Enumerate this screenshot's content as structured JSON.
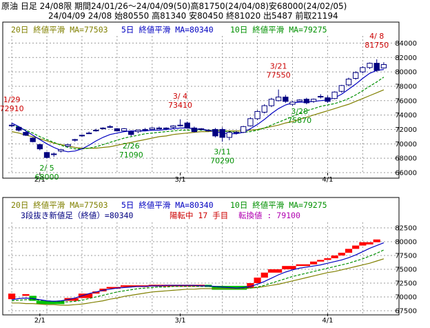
{
  "header": {
    "line1": "原油 日足 24/08限 期間24/01/26～24/04/09(50)高81750(24/04/08)安68000(24/02/05)",
    "line2": "24/04/09 24/08 始80550 高81340 安80450 終81020 出5487 前取21194"
  },
  "colors": {
    "ma20": "#808000",
    "ma5": "#0000c0",
    "ma10": "#009000",
    "up": "#ffffff",
    "down": "#000080",
    "brick_up": "#ff0000",
    "brick_down": "#00c000",
    "annot_high": "#cc0000",
    "annot_low": "#009000",
    "grid": "#999999"
  },
  "chart_data": [
    {
      "type": "candlestick",
      "legend": [
        {
          "label": "20日 終値平滑 MA=77503",
          "color_key": "ma20"
        },
        {
          "label": "5日 終値平滑 MA=80340",
          "color_key": "ma5"
        },
        {
          "label": "10日 終値平滑 MA=79275",
          "color_key": "ma10"
        }
      ],
      "x_ticks": [
        {
          "label": "2/1",
          "i": 4
        },
        {
          "label": "3/1",
          "i": 24
        },
        {
          "label": "4/1",
          "i": 45
        }
      ],
      "ylim": [
        66000,
        85000
      ],
      "y_ticks": [
        66000,
        68000,
        70000,
        72000,
        74000,
        76000,
        78000,
        80000,
        82000,
        84000
      ],
      "candles": [
        {
          "o": 72500,
          "h": 72910,
          "l": 72300,
          "c": 72600
        },
        {
          "o": 72300,
          "h": 72400,
          "l": 71700,
          "c": 71900
        },
        {
          "o": 71600,
          "h": 71700,
          "l": 71100,
          "c": 71200
        },
        {
          "o": 70800,
          "h": 70900,
          "l": 70200,
          "c": 70300
        },
        {
          "o": 69900,
          "h": 70000,
          "l": 69100,
          "c": 69300
        },
        {
          "o": 68800,
          "h": 68900,
          "l": 68000,
          "c": 68100
        },
        {
          "o": 68500,
          "h": 68800,
          "l": 68200,
          "c": 68600
        },
        {
          "o": 69000,
          "h": 69300,
          "l": 68800,
          "c": 69200
        },
        {
          "o": 69700,
          "h": 70000,
          "l": 69500,
          "c": 69900
        },
        {
          "o": 70500,
          "h": 70700,
          "l": 70300,
          "c": 70600
        },
        {
          "o": 71100,
          "h": 71300,
          "l": 71000,
          "c": 71200
        },
        {
          "o": 71500,
          "h": 71700,
          "l": 71400,
          "c": 71500
        },
        {
          "o": 71900,
          "h": 72100,
          "l": 71700,
          "c": 71800
        },
        {
          "o": 72200,
          "h": 72300,
          "l": 72000,
          "c": 72100
        },
        {
          "o": 72400,
          "h": 72600,
          "l": 72200,
          "c": 72300
        },
        {
          "o": 72100,
          "h": 72200,
          "l": 71700,
          "c": 71800
        },
        {
          "o": 71800,
          "h": 72200,
          "l": 71700,
          "c": 72100
        },
        {
          "o": 71700,
          "h": 71800,
          "l": 71090,
          "c": 71300
        },
        {
          "o": 71700,
          "h": 72000,
          "l": 71500,
          "c": 71900
        },
        {
          "o": 71900,
          "h": 72200,
          "l": 71800,
          "c": 72000
        },
        {
          "o": 72000,
          "h": 72300,
          "l": 71900,
          "c": 72200
        },
        {
          "o": 72100,
          "h": 72400,
          "l": 72000,
          "c": 72200
        },
        {
          "o": 72100,
          "h": 72300,
          "l": 71900,
          "c": 72200
        },
        {
          "o": 72300,
          "h": 72600,
          "l": 72100,
          "c": 72500
        },
        {
          "o": 72500,
          "h": 73410,
          "l": 72400,
          "c": 72600
        },
        {
          "o": 72900,
          "h": 73100,
          "l": 72100,
          "c": 72200
        },
        {
          "o": 72200,
          "h": 72400,
          "l": 71600,
          "c": 71700
        },
        {
          "o": 72000,
          "h": 72200,
          "l": 71900,
          "c": 72100
        },
        {
          "o": 71800,
          "h": 72000,
          "l": 71700,
          "c": 71900
        },
        {
          "o": 72000,
          "h": 72200,
          "l": 70900,
          "c": 71100
        },
        {
          "o": 72000,
          "h": 72300,
          "l": 70290,
          "c": 70900
        },
        {
          "o": 70900,
          "h": 71800,
          "l": 70500,
          "c": 71600
        },
        {
          "o": 71500,
          "h": 71800,
          "l": 71300,
          "c": 71600
        },
        {
          "o": 71600,
          "h": 72500,
          "l": 71500,
          "c": 72400
        },
        {
          "o": 72500,
          "h": 73700,
          "l": 72400,
          "c": 73500
        },
        {
          "o": 73500,
          "h": 74700,
          "l": 73300,
          "c": 74500
        },
        {
          "o": 74400,
          "h": 75500,
          "l": 74200,
          "c": 75300
        },
        {
          "o": 75300,
          "h": 76400,
          "l": 75100,
          "c": 76200
        },
        {
          "o": 76000,
          "h": 77550,
          "l": 75900,
          "c": 76500
        },
        {
          "o": 76500,
          "h": 76800,
          "l": 75700,
          "c": 75900
        },
        {
          "o": 75500,
          "h": 76000,
          "l": 75300,
          "c": 75800
        },
        {
          "o": 75900,
          "h": 76200,
          "l": 75870,
          "c": 76100
        },
        {
          "o": 76200,
          "h": 76400,
          "l": 75500,
          "c": 75700
        },
        {
          "o": 75900,
          "h": 76300,
          "l": 75700,
          "c": 76200
        },
        {
          "o": 76500,
          "h": 76900,
          "l": 76300,
          "c": 76600
        },
        {
          "o": 76400,
          "h": 76700,
          "l": 75700,
          "c": 75900
        },
        {
          "o": 76300,
          "h": 77300,
          "l": 76200,
          "c": 77200
        },
        {
          "o": 77300,
          "h": 78200,
          "l": 77100,
          "c": 78100
        },
        {
          "o": 78200,
          "h": 79200,
          "l": 78000,
          "c": 79000
        },
        {
          "o": 79100,
          "h": 80100,
          "l": 78900,
          "c": 79900
        },
        {
          "o": 80000,
          "h": 80800,
          "l": 79800,
          "c": 80600
        },
        {
          "o": 80600,
          "h": 81300,
          "l": 80400,
          "c": 81200
        },
        {
          "o": 81200,
          "h": 81750,
          "l": 80000,
          "c": 80200
        },
        {
          "o": 80550,
          "h": 81340,
          "l": 80450,
          "c": 81020
        }
      ],
      "ma5": [
        72900,
        72400,
        71800,
        71200,
        70600,
        70000,
        69500,
        69100,
        68900,
        69000,
        69300,
        69800,
        70400,
        70900,
        71300,
        71500,
        71700,
        71800,
        71800,
        71800,
        71900,
        71900,
        72000,
        72100,
        72200,
        72200,
        72100,
        72000,
        71900,
        71700,
        71500,
        71400,
        71400,
        71600,
        72100,
        72700,
        73400,
        74200,
        74900,
        75400,
        75700,
        75800,
        75800,
        75900,
        76000,
        76100,
        76400,
        76900,
        77600,
        78300,
        79100,
        79800,
        80200,
        80340
      ],
      "ma10": [
        72600,
        72300,
        71900,
        71500,
        71000,
        70600,
        70200,
        69800,
        69500,
        69300,
        69300,
        69400,
        69600,
        69900,
        70200,
        70500,
        70800,
        71000,
        71200,
        71400,
        71500,
        71600,
        71700,
        71800,
        71900,
        71900,
        71900,
        71900,
        71900,
        71900,
        71800,
        71700,
        71600,
        71600,
        71700,
        71900,
        72200,
        72600,
        73000,
        73400,
        73800,
        74200,
        74600,
        74900,
        75200,
        75400,
        75600,
        75900,
        76300,
        76800,
        77400,
        78000,
        78600,
        79275
      ],
      "ma20": [
        71700,
        71500,
        71200,
        71000,
        70700,
        70400,
        70100,
        69900,
        69700,
        69500,
        69400,
        69400,
        69400,
        69500,
        69600,
        69800,
        70000,
        70200,
        70400,
        70600,
        70800,
        71000,
        71100,
        71300,
        71400,
        71500,
        71600,
        71700,
        71700,
        71800,
        71800,
        71800,
        71800,
        71800,
        71900,
        72000,
        72200,
        72400,
        72600,
        72900,
        73100,
        73400,
        73700,
        74000,
        74300,
        74600,
        74900,
        75200,
        75500,
        75900,
        76300,
        76700,
        77100,
        77503
      ],
      "annotations": [
        {
          "i": 0,
          "text_date": "1/29",
          "text_val": "72910",
          "kind": "high"
        },
        {
          "i": 5,
          "text_date": "2/ 5",
          "text_val": "68000",
          "kind": "low"
        },
        {
          "i": 17,
          "text_date": "2/26",
          "text_val": "71090",
          "kind": "low"
        },
        {
          "i": 24,
          "text_date": "3/ 4",
          "text_val": "73410",
          "kind": "high"
        },
        {
          "i": 30,
          "text_date": "3/11",
          "text_val": "70290",
          "kind": "low"
        },
        {
          "i": 38,
          "text_date": "3/21",
          "text_val": "77550",
          "kind": "high"
        },
        {
          "i": 41,
          "text_date": "3/28",
          "text_val": "75870",
          "kind": "low"
        },
        {
          "i": 52,
          "text_date": "4/ 8",
          "text_val": "81750",
          "kind": "high"
        }
      ]
    },
    {
      "type": "three_line_break",
      "legend": [
        {
          "label": "20日 終値平滑 MA=77503",
          "color_key": "ma20"
        },
        {
          "label": "5日 終値平滑 MA=80340",
          "color_key": "ma5"
        },
        {
          "label": "10日 終値平滑 MA=79275",
          "color_key": "ma10"
        }
      ],
      "info": {
        "label": "3段抜き新値足（終値）=80340",
        "status": "陽転中 17 手目",
        "reversal": "転換値 : 79100"
      },
      "x_ticks": [
        {
          "label": "2/1",
          "i": 4
        },
        {
          "label": "3/1",
          "i": 24
        },
        {
          "label": "4/1",
          "i": 45
        }
      ],
      "ylim": [
        67000,
        83500
      ],
      "y_ticks": [
        67500,
        70000,
        72500,
        75000,
        77500,
        80000,
        82500
      ],
      "bricks": [
        {
          "from": 0,
          "to": 1,
          "lo": 69600,
          "hi": 70600,
          "dir": "up"
        },
        {
          "from": 2,
          "to": 3,
          "lo": 70200,
          "hi": 70500,
          "dir": "up"
        },
        {
          "from": 3,
          "to": 4,
          "lo": 69300,
          "hi": 70200,
          "dir": "down"
        },
        {
          "from": 4,
          "to": 8,
          "lo": 68700,
          "hi": 69300,
          "dir": "down"
        },
        {
          "from": 8,
          "to": 10,
          "lo": 69300,
          "hi": 69800,
          "dir": "up"
        },
        {
          "from": 10,
          "to": 12,
          "lo": 69800,
          "hi": 70600,
          "dir": "up"
        },
        {
          "from": 12,
          "to": 13,
          "lo": 70600,
          "hi": 71000,
          "dir": "up"
        },
        {
          "from": 13,
          "to": 14,
          "lo": 71000,
          "hi": 71500,
          "dir": "up"
        },
        {
          "from": 14,
          "to": 16,
          "lo": 71500,
          "hi": 71800,
          "dir": "up"
        },
        {
          "from": 16,
          "to": 20,
          "lo": 71800,
          "hi": 72100,
          "dir": "up"
        },
        {
          "from": 20,
          "to": 28,
          "lo": 71900,
          "hi": 72200,
          "dir": "up"
        },
        {
          "from": 28,
          "to": 29,
          "lo": 71800,
          "hi": 72200,
          "dir": "down"
        },
        {
          "from": 29,
          "to": 34,
          "lo": 71300,
          "hi": 72000,
          "dir": "down"
        },
        {
          "from": 34,
          "to": 35,
          "lo": 71600,
          "hi": 72500,
          "dir": "up"
        },
        {
          "from": 35,
          "to": 36,
          "lo": 72500,
          "hi": 73500,
          "dir": "up"
        },
        {
          "from": 36,
          "to": 37,
          "lo": 73500,
          "hi": 74400,
          "dir": "up"
        },
        {
          "from": 37,
          "to": 39,
          "lo": 74400,
          "hi": 75000,
          "dir": "up"
        },
        {
          "from": 39,
          "to": 41,
          "lo": 75000,
          "hi": 75600,
          "dir": "up"
        },
        {
          "from": 41,
          "to": 43,
          "lo": 75600,
          "hi": 75900,
          "dir": "up"
        },
        {
          "from": 43,
          "to": 44,
          "lo": 75900,
          "hi": 76400,
          "dir": "up"
        },
        {
          "from": 44,
          "to": 45,
          "lo": 76400,
          "hi": 76700,
          "dir": "up"
        },
        {
          "from": 45,
          "to": 46,
          "lo": 76700,
          "hi": 77000,
          "dir": "up"
        },
        {
          "from": 46,
          "to": 47,
          "lo": 77000,
          "hi": 77500,
          "dir": "up"
        },
        {
          "from": 47,
          "to": 48,
          "lo": 77500,
          "hi": 78000,
          "dir": "up"
        },
        {
          "from": 48,
          "to": 49,
          "lo": 78000,
          "hi": 78700,
          "dir": "up"
        },
        {
          "from": 49,
          "to": 50,
          "lo": 78700,
          "hi": 79300,
          "dir": "up"
        },
        {
          "from": 50,
          "to": 51,
          "lo": 79300,
          "hi": 79900,
          "dir": "up"
        },
        {
          "from": 51,
          "to": 52,
          "lo": 79500,
          "hi": 79900,
          "dir": "up"
        },
        {
          "from": 52,
          "to": 53,
          "lo": 79900,
          "hi": 80400,
          "dir": "up"
        }
      ],
      "ma5": [
        69500,
        69700,
        69800,
        69700,
        69500,
        69300,
        69200,
        69300,
        69500,
        69800,
        70200,
        70600,
        70900,
        71200,
        71400,
        71600,
        71700,
        71800,
        71900,
        71900,
        72000,
        72000,
        72100,
        72100,
        72100,
        72100,
        72100,
        72000,
        72000,
        71900,
        71800,
        71700,
        71600,
        71700,
        71900,
        72300,
        72800,
        73400,
        74000,
        74500,
        74900,
        75200,
        75400,
        75600,
        75800,
        76100,
        76400,
        76700,
        77100,
        77600,
        78200,
        78800,
        79300,
        79800
      ],
      "ma10": [
        69300,
        69400,
        69500,
        69500,
        69400,
        69300,
        69200,
        69100,
        69100,
        69200,
        69400,
        69700,
        70000,
        70300,
        70600,
        70900,
        71100,
        71300,
        71500,
        71600,
        71700,
        71800,
        71800,
        71900,
        71900,
        71900,
        71900,
        71900,
        71900,
        71800,
        71800,
        71700,
        71600,
        71600,
        71600,
        71800,
        72100,
        72500,
        72900,
        73300,
        73700,
        74000,
        74300,
        74600,
        74900,
        75200,
        75500,
        75800,
        76100,
        76500,
        76900,
        77400,
        77900,
        78500
      ],
      "ma20": [
        68900,
        68900,
        68800,
        68800,
        68700,
        68600,
        68600,
        68500,
        68500,
        68600,
        68700,
        68900,
        69100,
        69300,
        69600,
        69800,
        70100,
        70300,
        70500,
        70700,
        70900,
        71000,
        71100,
        71200,
        71300,
        71400,
        71400,
        71500,
        71500,
        71500,
        71500,
        71500,
        71500,
        71500,
        71600,
        71700,
        71900,
        72100,
        72300,
        72600,
        72900,
        73200,
        73500,
        73800,
        74100,
        74400,
        74600,
        74900,
        75200,
        75500,
        75800,
        76100,
        76500,
        76900
      ]
    }
  ]
}
